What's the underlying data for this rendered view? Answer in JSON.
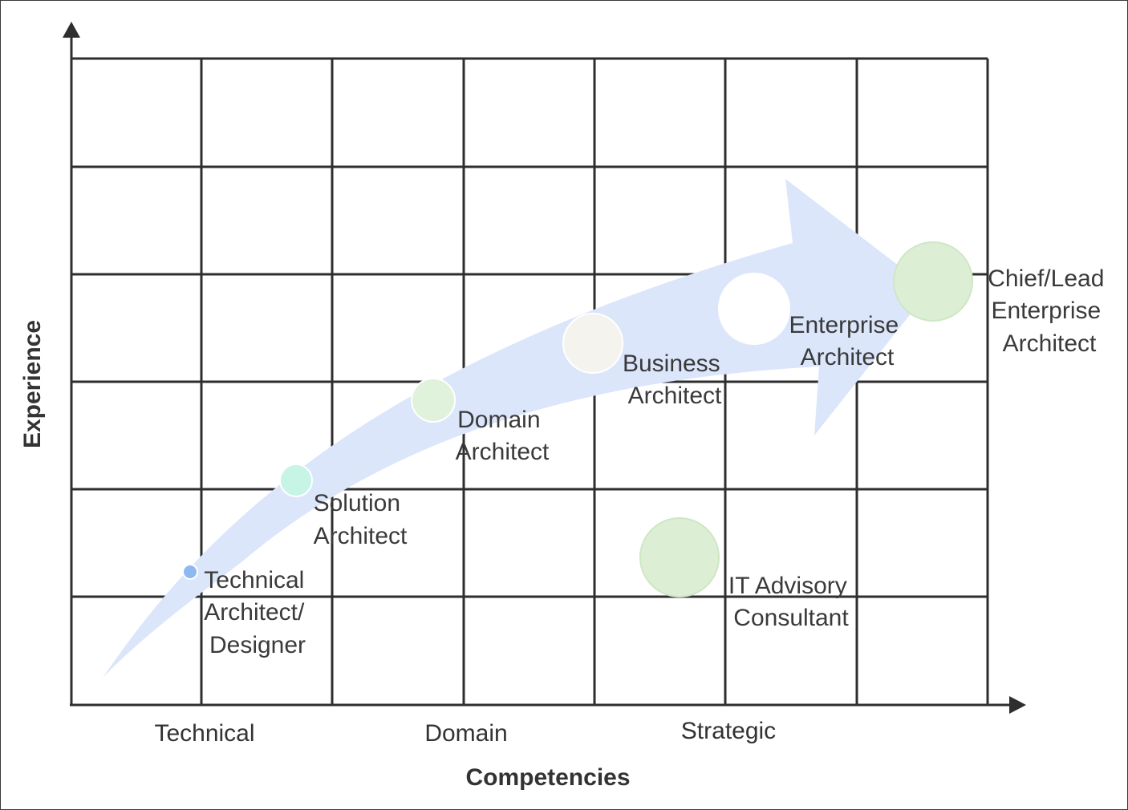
{
  "axes": {
    "x_title": "Competencies",
    "y_title": "Experience",
    "x_ticks": [
      "Technical",
      "Domain",
      "Strategic"
    ]
  },
  "roles": [
    {
      "id": "technical",
      "lines": [
        "Technical",
        "Architect/",
        "Designer"
      ],
      "color": "#8fb8f0"
    },
    {
      "id": "solution",
      "lines": [
        "Solution",
        "Architect"
      ],
      "color": "#c6f5e6"
    },
    {
      "id": "domain",
      "lines": [
        "Domain",
        "Architect"
      ],
      "color": "#e0f2dc"
    },
    {
      "id": "business",
      "lines": [
        "Business",
        "Architect"
      ],
      "color": "#f5f3ee"
    },
    {
      "id": "enterprise",
      "lines": [
        "Enterprise",
        "Architect"
      ],
      "color": "#ffffff"
    },
    {
      "id": "chief",
      "lines": [
        "Chief/Lead",
        "Enterprise",
        "Architect"
      ],
      "color": "#dcefd5"
    },
    {
      "id": "it-advisory",
      "lines": [
        "IT Advisory",
        "Consultant"
      ],
      "color": "#dcefd5"
    }
  ],
  "colors": {
    "grid": "#2e2e2e",
    "arrow_fill": "#dbe6fb",
    "circle_stroke": "#ffffff"
  }
}
